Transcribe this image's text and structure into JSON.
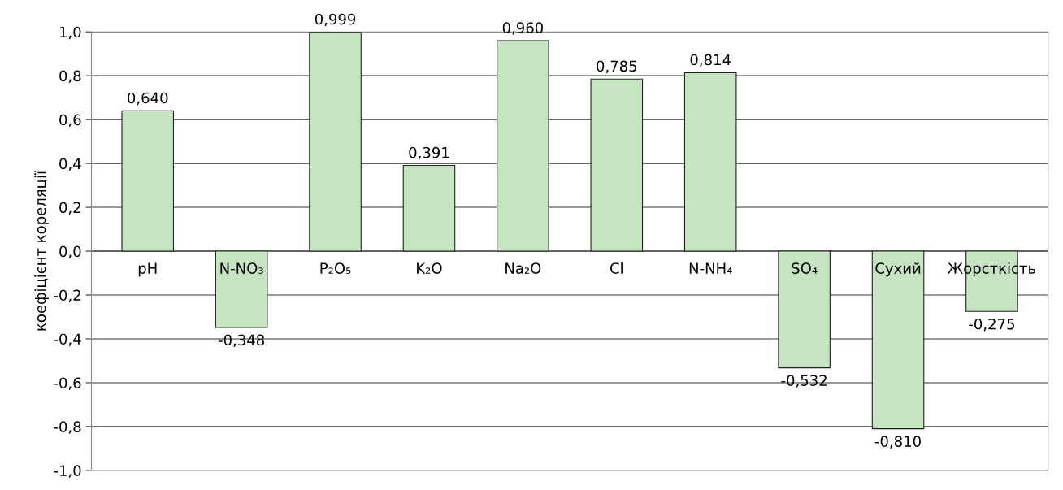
{
  "chart_data": {
    "type": "bar",
    "ylabel": "коефіцієнт кореляції",
    "categories": [
      "pH",
      "N-NO₃",
      "P₂O₅",
      "K₂O",
      "Na₂O",
      "Cl",
      "N-NH₄",
      "SO₄",
      "Сухий",
      "Жорсткість"
    ],
    "values": [
      0.64,
      -0.348,
      0.999,
      0.391,
      0.96,
      0.785,
      0.814,
      -0.532,
      -0.81,
      -0.275
    ],
    "value_labels": [
      "0,640",
      "-0,348",
      "0,999",
      "0,391",
      "0,960",
      "0,785",
      "0,814",
      "-0,532",
      "-0,810",
      "-0,275"
    ],
    "color": "#c6e3c2",
    "ylim": [
      -1.0,
      1.0
    ],
    "yticks": [
      {
        "value": -1.0,
        "label": "-1,0"
      },
      {
        "value": -0.8,
        "label": "-0,8"
      },
      {
        "value": -0.6,
        "label": "-0,6"
      },
      {
        "value": -0.4,
        "label": "-0,4"
      },
      {
        "value": -0.2,
        "label": "-0,2"
      },
      {
        "value": 0.0,
        "label": "0,0"
      },
      {
        "value": 0.2,
        "label": "0,2"
      },
      {
        "value": 0.4,
        "label": "0,4"
      },
      {
        "value": 0.6,
        "label": "0,6"
      },
      {
        "value": 0.8,
        "label": "0,8"
      },
      {
        "value": 1.0,
        "label": "1,0"
      }
    ],
    "grid": "y",
    "legend": false
  }
}
